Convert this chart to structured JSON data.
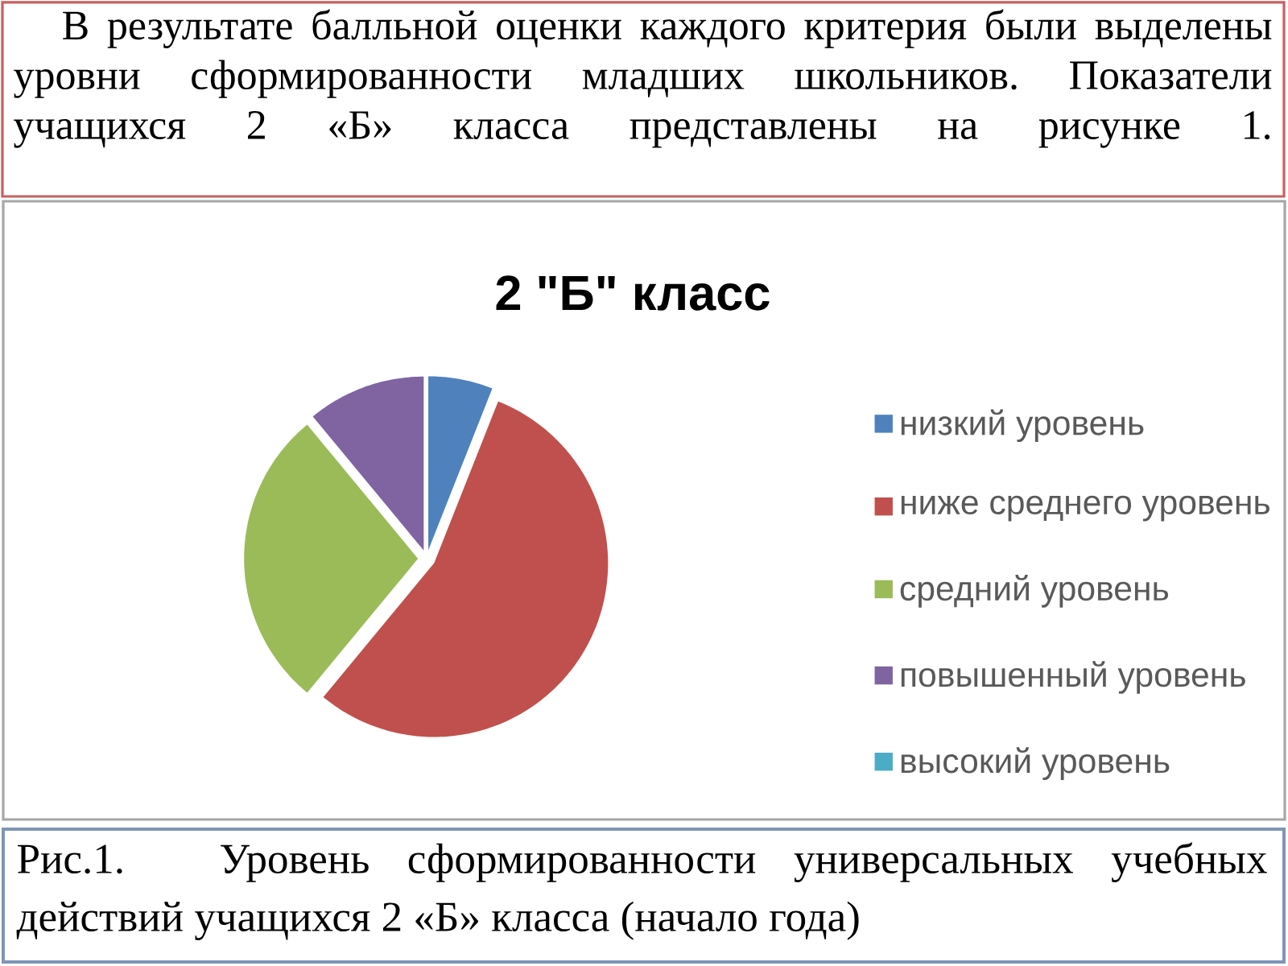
{
  "chart_data": {
    "type": "pie",
    "title": "2 \"Б\" класс",
    "categories": [
      "низкий уровень",
      "ниже среднего уровень",
      "средний уровень",
      "повышенный уровень",
      "высокий уровень"
    ],
    "values": [
      6,
      55,
      28,
      11,
      0
    ],
    "colors": [
      "#4f81bd",
      "#c0504d",
      "#9bbb59",
      "#8064a2",
      "#4bacc6"
    ],
    "legend": "right",
    "annotations": [
      "В результате балльной оценки каждого критерия были выделены уровни сформированности младших школьников. Показатели учащихся 2 «Б» класса представлены на рисунке 1.",
      "Рис.1. Уровень сформированности универсальных учебных действий учащихся 2 «Б» класса (начало года)"
    ]
  }
}
